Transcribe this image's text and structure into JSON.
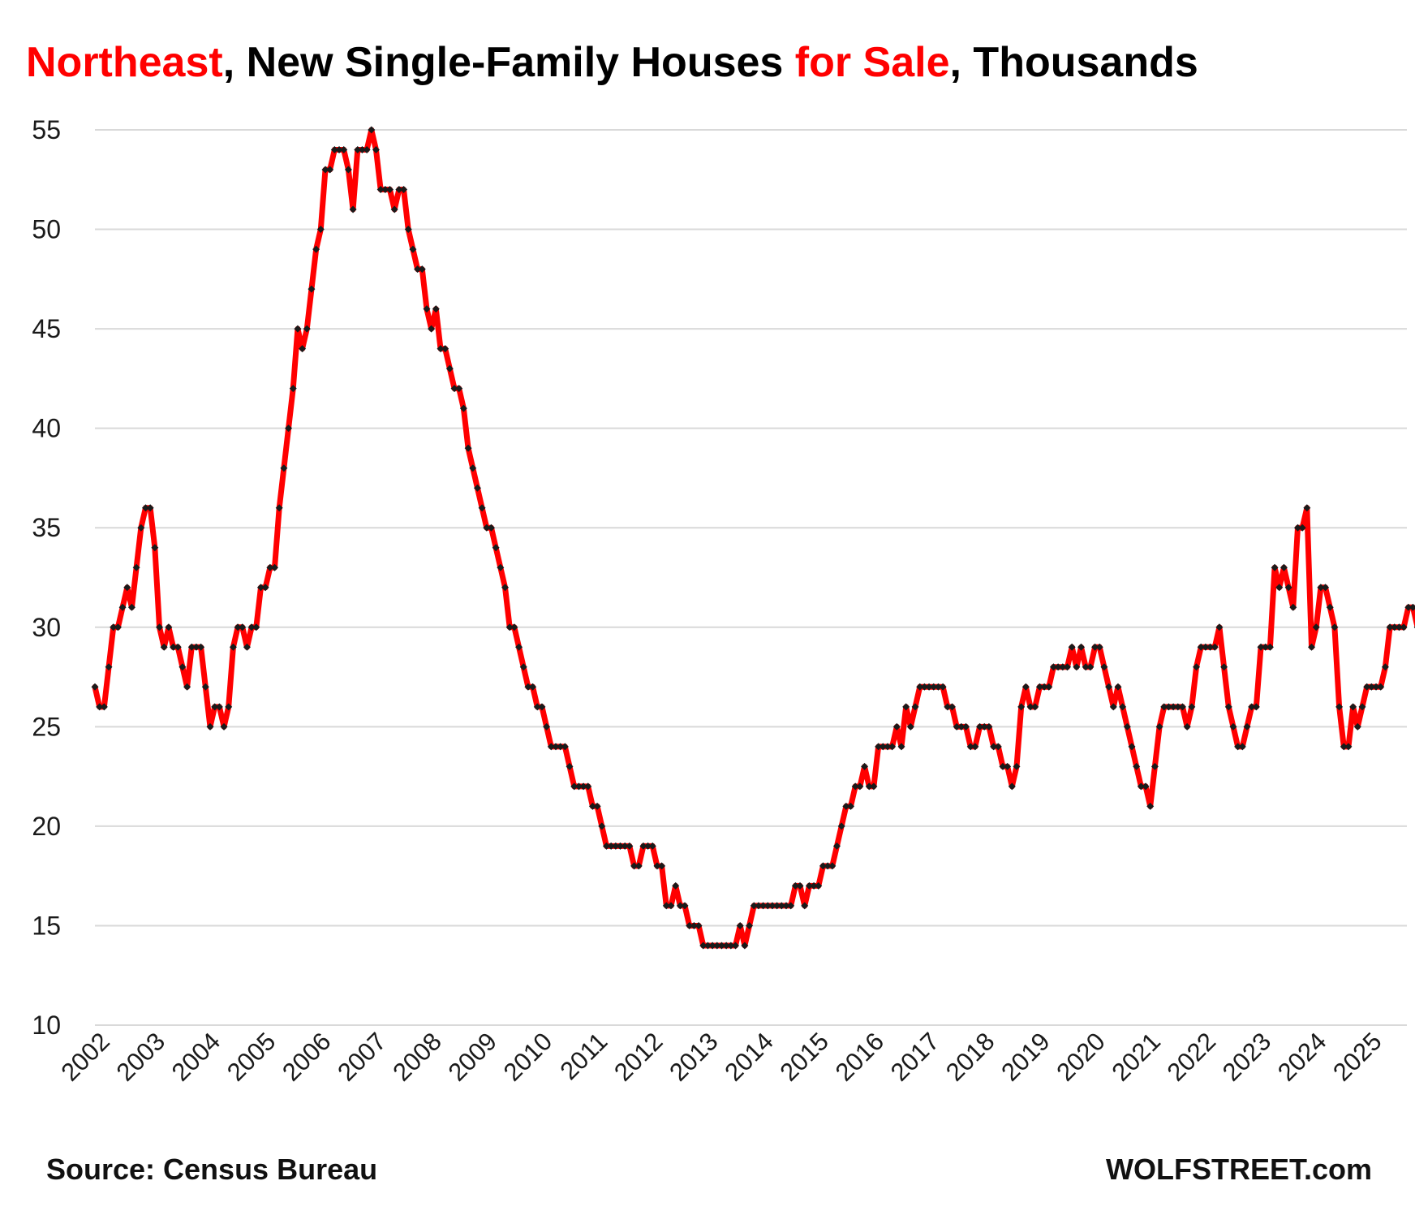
{
  "title_segments": [
    {
      "text": "Northeast",
      "color": "#ff0000"
    },
    {
      "text": ", New Single-Family Houses ",
      "color": "#000000"
    },
    {
      "text": "for Sale",
      "color": "#ff0000"
    },
    {
      "text": ", Thousands",
      "color": "#000000"
    }
  ],
  "source": "Source: Census Bureau",
  "branding": "WOLFSTREET.com",
  "colors": {
    "line": "#ff0000",
    "marker": "#1a1a1a",
    "grid": "#d9d9d9",
    "text": "#000000"
  },
  "chart_data": {
    "type": "line",
    "title": "Northeast, New Single-Family Houses for Sale, Thousands",
    "xlabel": "",
    "ylabel": "",
    "ylim": [
      10,
      55
    ],
    "yticks": [
      10,
      15,
      20,
      25,
      30,
      35,
      40,
      45,
      50,
      55
    ],
    "xticks": [
      "2002",
      "2003",
      "2004",
      "2005",
      "2006",
      "2007",
      "2008",
      "2009",
      "2010",
      "2011",
      "2012",
      "2013",
      "2014",
      "2015",
      "2016",
      "2017",
      "2018",
      "2019",
      "2020",
      "2021",
      "2022",
      "2023",
      "2024",
      "2025"
    ],
    "grid": true,
    "legend": "none",
    "start": "2002-01",
    "frequency": "monthly",
    "series": [
      {
        "values": [
          27,
          26,
          26,
          28,
          30,
          30,
          31,
          32,
          31,
          33,
          35,
          36,
          36,
          34,
          30,
          29,
          30,
          29,
          29,
          28,
          27,
          29,
          29,
          29,
          27,
          25,
          26,
          26,
          25,
          26,
          29,
          30,
          30,
          29,
          30,
          30,
          32,
          32,
          33,
          33,
          36,
          38,
          40,
          42,
          45,
          44,
          45,
          47,
          49,
          50,
          53,
          53,
          54,
          54,
          54,
          53,
          51,
          54,
          54,
          54,
          55,
          54,
          52,
          52,
          52,
          51,
          52,
          52,
          50,
          49,
          48,
          48,
          46,
          45,
          46,
          44,
          44,
          43,
          42,
          42,
          41,
          39,
          38,
          37,
          36,
          35,
          35,
          34,
          33,
          32,
          30,
          30,
          29,
          28,
          27,
          27,
          26,
          26,
          25,
          24,
          24,
          24,
          24,
          23,
          22,
          22,
          22,
          22,
          21,
          21,
          20,
          19,
          19,
          19,
          19,
          19,
          19,
          18,
          18,
          19,
          19,
          19,
          18,
          18,
          16,
          16,
          17,
          16,
          16,
          15,
          15,
          15,
          14,
          14,
          14,
          14,
          14,
          14,
          14,
          14,
          15,
          14,
          15,
          16,
          16,
          16,
          16,
          16,
          16,
          16,
          16,
          16,
          17,
          17,
          16,
          17,
          17,
          17,
          18,
          18,
          18,
          19,
          20,
          21,
          21,
          22,
          22,
          23,
          22,
          22,
          24,
          24,
          24,
          24,
          25,
          24,
          26,
          25,
          26,
          27,
          27,
          27,
          27,
          27,
          27,
          26,
          26,
          25,
          25,
          25,
          24,
          24,
          25,
          25,
          25,
          24,
          24,
          23,
          23,
          22,
          23,
          26,
          27,
          26,
          26,
          27,
          27,
          27,
          28,
          28,
          28,
          28,
          29,
          28,
          29,
          28,
          28,
          29,
          29,
          28,
          27,
          26,
          27,
          26,
          25,
          24,
          23,
          22,
          22,
          21,
          23,
          25,
          26,
          26,
          26,
          26,
          26,
          25,
          26,
          28,
          29,
          29,
          29,
          29,
          30,
          28,
          26,
          25,
          24,
          24,
          25,
          26,
          26,
          29,
          29,
          29,
          33,
          32,
          33,
          32,
          31,
          35,
          35,
          36,
          29,
          30,
          32,
          32,
          31,
          30,
          26,
          24,
          24,
          26,
          25,
          26,
          27,
          27,
          27,
          27,
          28,
          30,
          30,
          30,
          30,
          31,
          31,
          30,
          31
        ]
      }
    ]
  }
}
